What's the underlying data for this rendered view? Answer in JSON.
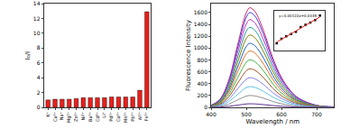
{
  "chart_data": [
    {
      "type": "bar",
      "ylabel": "I₀/I",
      "categories": [
        "K⁺",
        "Ca²⁺",
        "Na⁺",
        "Mg²⁺",
        "Zn²⁺",
        "Ni²⁺",
        "Ba²⁺",
        "Cd²⁺",
        "Li⁺",
        "Pd²⁺",
        "Co²⁺",
        "Mn²⁺",
        "Pb²⁺",
        "Al³⁺",
        "Fe³⁺"
      ],
      "values": [
        1.0,
        1.1,
        1.1,
        1.1,
        1.2,
        1.3,
        1.3,
        1.3,
        1.3,
        1.4,
        1.4,
        1.4,
        1.4,
        2.3,
        12.9
      ],
      "color": "#e8201c",
      "ylim": [
        0,
        14
      ],
      "yticks": [
        0,
        2,
        4,
        6,
        8,
        10,
        12,
        14
      ],
      "grid": false
    },
    {
      "type": "line",
      "xlabel": "Wavelength / nm",
      "ylabel": "Fluorescence Intensity",
      "x": [
        400,
        425,
        450,
        475,
        500,
        510,
        525,
        550,
        575,
        600,
        625,
        650,
        700,
        750
      ],
      "series": [
        {
          "color": "#d6246e",
          "values": [
            34,
            134,
            454,
            1042,
            1596,
            1680,
            1613,
            1277,
            840,
            504,
            286,
            151,
            34,
            8
          ]
        },
        {
          "color": "#3b3bd6",
          "values": [
            32,
            128,
            432,
            992,
            1520,
            1600,
            1536,
            1216,
            800,
            480,
            272,
            144,
            32,
            8
          ]
        },
        {
          "color": "#c030c0",
          "values": [
            30,
            118,
            400,
            918,
            1406,
            1480,
            1421,
            1125,
            740,
            444,
            252,
            133,
            30,
            7
          ]
        },
        {
          "color": "#20a0a0",
          "values": [
            27,
            108,
            365,
            837,
            1283,
            1350,
            1296,
            1026,
            675,
            405,
            230,
            122,
            27,
            7
          ]
        },
        {
          "color": "#808000",
          "values": [
            24,
            98,
            329,
            756,
            1159,
            1220,
            1171,
            927,
            610,
            366,
            207,
            110,
            24,
            6
          ]
        },
        {
          "color": "#2060c0",
          "values": [
            22,
            86,
            292,
            670,
            1026,
            1080,
            1037,
            821,
            540,
            324,
            184,
            97,
            22,
            5
          ]
        },
        {
          "color": "#e07020",
          "values": [
            19,
            76,
            257,
            589,
            903,
            950,
            912,
            722,
            475,
            285,
            162,
            86,
            19,
            5
          ]
        },
        {
          "color": "#40b040",
          "values": [
            16,
            64,
            216,
            496,
            760,
            800,
            768,
            608,
            400,
            240,
            136,
            72,
            16,
            4
          ]
        },
        {
          "color": "#a05020",
          "values": [
            13,
            52,
            176,
            403,
            618,
            650,
            624,
            494,
            325,
            195,
            111,
            59,
            13,
            3
          ]
        },
        {
          "color": "#8080e0",
          "values": [
            10,
            40,
            135,
            310,
            475,
            500,
            480,
            380,
            250,
            150,
            85,
            45,
            10,
            3
          ]
        },
        {
          "color": "#60c0e0",
          "values": [
            7,
            28,
            95,
            217,
            333,
            350,
            336,
            266,
            175,
            105,
            60,
            32,
            7,
            2
          ]
        },
        {
          "color": "#909090",
          "values": [
            4,
            16,
            54,
            124,
            190,
            200,
            192,
            152,
            100,
            60,
            34,
            18,
            4,
            1
          ]
        },
        {
          "color": "#603090",
          "values": [
            1,
            5,
            16,
            37,
            57,
            60,
            58,
            46,
            30,
            18,
            10,
            5,
            1,
            0
          ]
        }
      ],
      "xlim": [
        400,
        750
      ],
      "xticks": [
        400,
        500,
        600,
        700
      ],
      "ylim": [
        0,
        1750
      ],
      "yticks": [
        0,
        200,
        400,
        600,
        800,
        1000,
        1200,
        1400,
        1600
      ],
      "grid": false
    },
    {
      "type": "scatter",
      "annotation": "y=0.00122x+0.0345",
      "x": [
        0,
        10,
        20,
        30,
        40,
        50,
        60,
        70,
        80,
        90
      ],
      "series": [
        {
          "type": "scatter",
          "color": "#000000",
          "marker": "square",
          "x": [
            0,
            10,
            20,
            30,
            40,
            50,
            60,
            70,
            80,
            90
          ],
          "values": [
            0.03,
            0.05,
            0.06,
            0.07,
            0.08,
            0.1,
            0.11,
            0.12,
            0.13,
            0.15
          ]
        },
        {
          "type": "line",
          "color": "#e8201c",
          "x": [
            0,
            90
          ],
          "values": [
            0.035,
            0.144
          ]
        }
      ],
      "xlim": [
        -5,
        100
      ],
      "ylim": [
        0,
        0.17
      ],
      "tick_labels": false,
      "grid": false
    }
  ]
}
